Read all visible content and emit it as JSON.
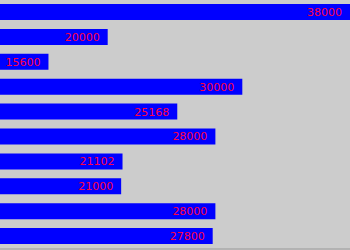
{
  "chart_data": {
    "type": "bar",
    "orientation": "horizontal",
    "categories": [
      null,
      null,
      null,
      null,
      null,
      null,
      null,
      null,
      null,
      null
    ],
    "values": [
      38000,
      20000,
      15600,
      30000,
      25168,
      28000,
      21102,
      21000,
      28000,
      27800
    ],
    "color": "#0000ff",
    "xlim": [
      12000,
      38000
    ],
    "data_labels": true,
    "tick_labels": false,
    "grid": false
  }
}
